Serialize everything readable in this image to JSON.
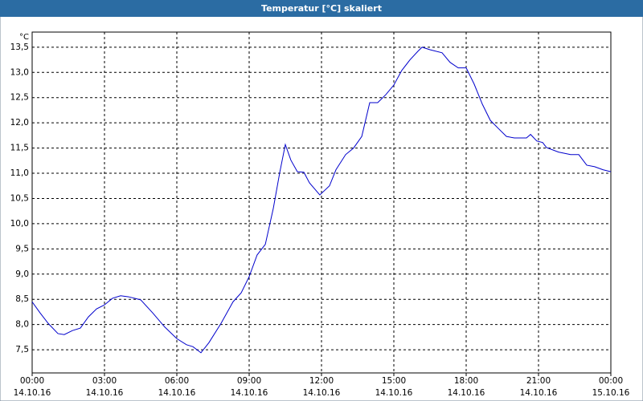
{
  "window_title": "Temperatur [°C] skaliert",
  "chart_data": {
    "type": "line",
    "y_unit": "°C",
    "x": [
      0,
      0.33,
      0.67,
      1.07,
      1.33,
      1.67,
      2.0,
      2.33,
      2.67,
      3.0,
      3.33,
      3.67,
      4.0,
      4.5,
      5.0,
      5.5,
      6.0,
      6.4,
      6.67,
      7.0,
      7.33,
      7.83,
      8.33,
      8.67,
      9.0,
      9.33,
      9.67,
      10.0,
      10.27,
      10.5,
      10.73,
      11.0,
      11.27,
      11.5,
      11.93,
      12.33,
      12.6,
      13.0,
      13.33,
      13.67,
      14.0,
      14.33,
      14.67,
      15.0,
      15.33,
      15.67,
      16.0,
      16.17,
      16.5,
      17.0,
      17.33,
      17.67,
      18.0,
      18.33,
      18.67,
      19.0,
      19.33,
      19.67,
      20.0,
      20.5,
      20.67,
      20.93,
      21.17,
      21.33,
      21.83,
      22.33,
      22.67,
      23.0,
      23.33,
      23.67,
      24.0
    ],
    "series": [
      {
        "color": "#0000cc",
        "values": [
          8.45,
          8.23,
          8.02,
          7.82,
          7.8,
          7.88,
          7.93,
          8.15,
          8.31,
          8.39,
          8.52,
          8.57,
          8.55,
          8.49,
          8.23,
          7.95,
          7.72,
          7.6,
          7.56,
          7.44,
          7.64,
          8.02,
          8.45,
          8.63,
          8.95,
          9.38,
          9.59,
          10.3,
          11.02,
          11.57,
          11.26,
          11.03,
          11.02,
          10.81,
          10.57,
          10.75,
          11.07,
          11.37,
          11.5,
          11.73,
          12.4,
          12.4,
          12.56,
          12.75,
          13.04,
          13.25,
          13.42,
          13.5,
          13.45,
          13.39,
          13.2,
          13.09,
          13.09,
          12.77,
          12.37,
          12.05,
          11.89,
          11.73,
          11.7,
          11.7,
          11.77,
          11.64,
          11.61,
          11.51,
          11.42,
          11.37,
          11.37,
          11.16,
          11.13,
          11.07,
          11.03
        ]
      }
    ],
    "xlim": [
      0,
      24
    ],
    "xticks": [
      {
        "value": 0,
        "label": "00:00"
      },
      {
        "value": 3,
        "label": "03:00"
      },
      {
        "value": 6,
        "label": "06:00"
      },
      {
        "value": 9,
        "label": "09:00"
      },
      {
        "value": 12,
        "label": "12:00"
      },
      {
        "value": 15,
        "label": "15:00"
      },
      {
        "value": 18,
        "label": "18:00"
      },
      {
        "value": 21,
        "label": "21:00"
      },
      {
        "value": 24,
        "label": "00:00"
      }
    ],
    "xtick_dates": [
      "14.10.16",
      "14.10.16",
      "14.10.16",
      "14.10.16",
      "14.10.16",
      "14.10.16",
      "14.10.16",
      "14.10.16",
      "15.10.16"
    ],
    "ylim": [
      7.04,
      13.8
    ],
    "yticks": [
      {
        "value": 7.5,
        "label": "7,5"
      },
      {
        "value": 8,
        "label": "8,0"
      },
      {
        "value": 8.5,
        "label": "8,5"
      },
      {
        "value": 9,
        "label": "9,0"
      },
      {
        "value": 9.5,
        "label": "9,5"
      },
      {
        "value": 10,
        "label": "10,0"
      },
      {
        "value": 10.5,
        "label": "10,5"
      },
      {
        "value": 11,
        "label": "11,0"
      },
      {
        "value": 11.5,
        "label": "11,5"
      },
      {
        "value": 12,
        "label": "12,0"
      },
      {
        "value": 12.5,
        "label": "12,5"
      },
      {
        "value": 13,
        "label": "13,0"
      },
      {
        "value": 13.5,
        "label": "13,5"
      }
    ],
    "grid": true
  }
}
